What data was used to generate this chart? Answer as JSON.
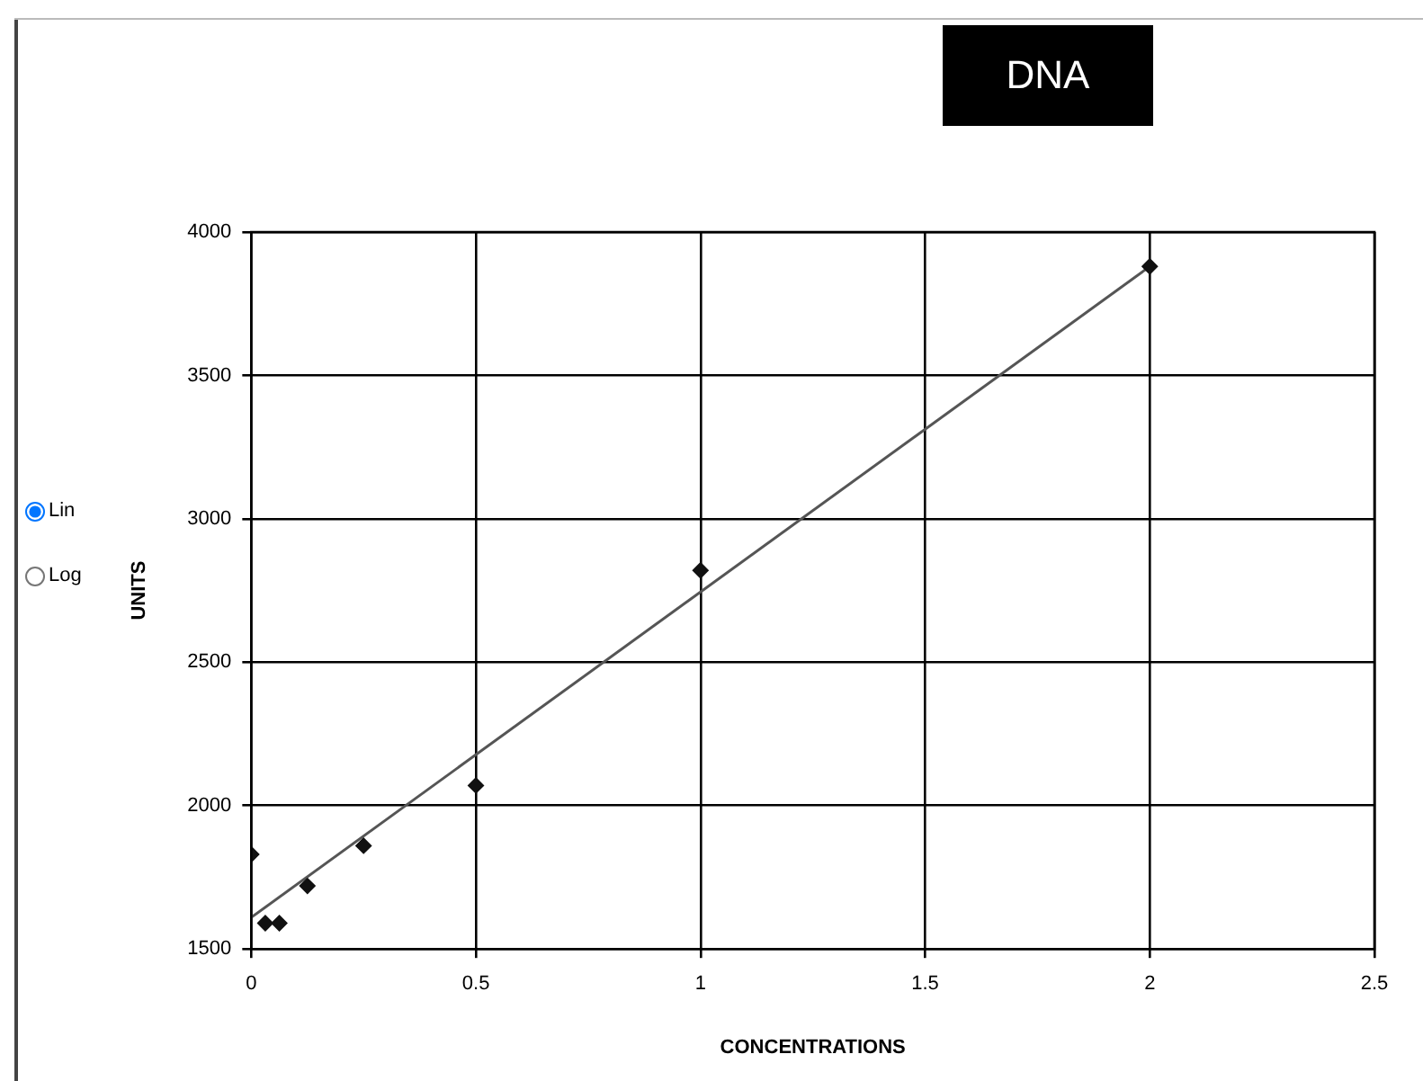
{
  "chart_data": {
    "type": "scatter",
    "title": "DNA",
    "xlabel": "CONCENTRATIONS",
    "ylabel": "UNITS",
    "annotations": [
      "Lin",
      "Log"
    ],
    "series": [
      {
        "color": "#111111",
        "marker": "diamond",
        "x": [
          0,
          0.03125,
          0.0625,
          0.125,
          0.25,
          0.5,
          1,
          2
        ],
        "values": [
          1830,
          1590,
          1590,
          1720,
          1860,
          2070,
          2820,
          3880
        ]
      },
      {
        "type": "line",
        "color": "#555555",
        "marker": "none",
        "x": [
          0,
          2
        ],
        "values": [
          1610,
          3880
        ]
      }
    ],
    "xlim": [
      0,
      2.5
    ],
    "xticks": [
      0,
      0.5,
      1,
      1.5,
      2,
      2.5
    ],
    "ylim": [
      1500,
      4000
    ],
    "yticks": [
      1500,
      2000,
      2500,
      3000,
      3500,
      4000
    ],
    "grid": true
  }
}
